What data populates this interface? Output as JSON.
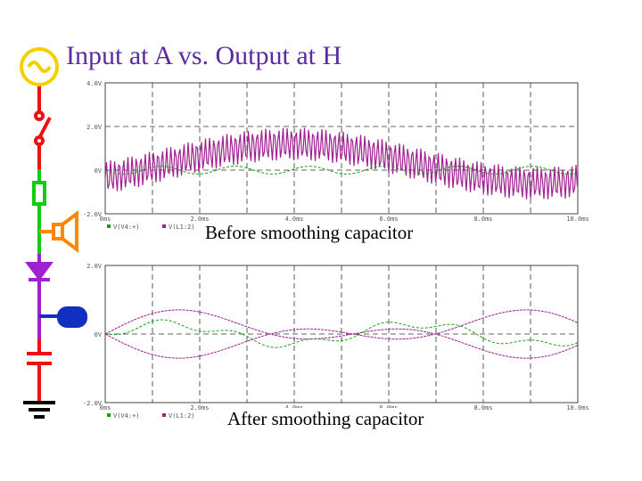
{
  "title": "Input at A vs. Output at H",
  "plots": [
    {
      "caption": "Before smoothing capacitor",
      "yticks": [
        "4.0V",
        "2.0V",
        "0V",
        "-2.0V"
      ],
      "xticks": [
        "0ms",
        "2.0ms",
        "4.0ms",
        "6.0ms",
        "8.0ms",
        "10.0ms"
      ],
      "legend": [
        "V(V4:+)",
        "V(L1:2)"
      ]
    },
    {
      "caption": "After smoothing capacitor",
      "yticks": [
        "2.0V",
        "0V",
        "-2.0V"
      ],
      "xticks": [
        "0ms",
        "2.0ms",
        "4.0ms",
        "6.0ms",
        "8.0ms",
        "10.0ms"
      ],
      "legend": [
        "V(V4:+)",
        "V(L1:2)"
      ]
    }
  ]
}
